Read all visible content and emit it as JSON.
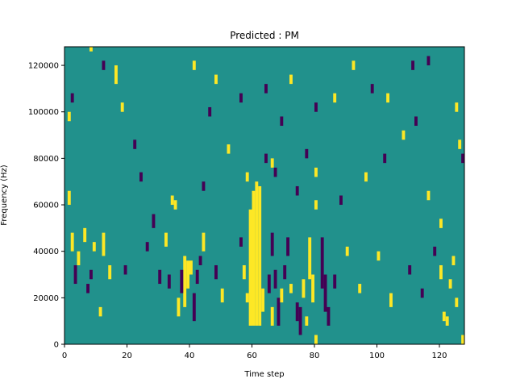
{
  "chart_data": {
    "type": "heatmap",
    "title": "Predicted : PM",
    "xlabel": "Time step",
    "ylabel": "Frequency (Hz)",
    "xlim": [
      0,
      128
    ],
    "ylim": [
      0,
      128000
    ],
    "x_ticks": [
      0,
      20,
      40,
      60,
      80,
      100,
      120
    ],
    "y_ticks": [
      0,
      20000,
      40000,
      60000,
      80000,
      100000,
      120000
    ],
    "x_tick_labels": [
      "0",
      "20",
      "40",
      "60",
      "80",
      "100",
      "120"
    ],
    "y_tick_labels": [
      "0",
      "20000",
      "40000",
      "60000",
      "80000",
      "100000",
      "120000"
    ],
    "grid": false,
    "legend": "none",
    "colors": {
      "background": "#21918c",
      "high": "#fde725",
      "low": "#440154"
    },
    "cell_height": 2000,
    "cells": [
      {
        "x": 59,
        "y0": 8000,
        "y1": 58000,
        "v": "high"
      },
      {
        "x": 60,
        "y0": 8000,
        "y1": 66000,
        "v": "high"
      },
      {
        "x": 61,
        "y0": 8000,
        "y1": 70000,
        "v": "high"
      },
      {
        "x": 62,
        "y0": 8000,
        "y1": 68000,
        "v": "high"
      },
      {
        "x": 63,
        "y0": 14000,
        "y1": 24000,
        "v": "high"
      },
      {
        "x": 65,
        "y0": 22000,
        "y1": 30000,
        "v": "low"
      },
      {
        "x": 66,
        "y0": 38000,
        "y1": 48000,
        "v": "low"
      },
      {
        "x": 66,
        "y0": 8000,
        "y1": 16000,
        "v": "high"
      },
      {
        "x": 67,
        "y0": 24000,
        "y1": 32000,
        "v": "low"
      },
      {
        "x": 68,
        "y0": 8000,
        "y1": 20000,
        "v": "low"
      },
      {
        "x": 69,
        "y0": 18000,
        "y1": 24000,
        "v": "high"
      },
      {
        "x": 70,
        "y0": 28000,
        "y1": 34000,
        "v": "low"
      },
      {
        "x": 71,
        "y0": 38000,
        "y1": 46000,
        "v": "low"
      },
      {
        "x": 72,
        "y0": 22000,
        "y1": 26000,
        "v": "high"
      },
      {
        "x": 74,
        "y0": 10000,
        "y1": 18000,
        "v": "low"
      },
      {
        "x": 75,
        "y0": 4000,
        "y1": 16000,
        "v": "low"
      },
      {
        "x": 76,
        "y0": 20000,
        "y1": 28000,
        "v": "high"
      },
      {
        "x": 77,
        "y0": 8000,
        "y1": 12000,
        "v": "high"
      },
      {
        "x": 78,
        "y0": 28000,
        "y1": 46000,
        "v": "high"
      },
      {
        "x": 79,
        "y0": 18000,
        "y1": 30000,
        "v": "high"
      },
      {
        "x": 80,
        "y0": 0,
        "y1": 4000,
        "v": "high"
      },
      {
        "x": 82,
        "y0": 24000,
        "y1": 46000,
        "v": "low"
      },
      {
        "x": 83,
        "y0": 14000,
        "y1": 30000,
        "v": "low"
      },
      {
        "x": 84,
        "y0": 8000,
        "y1": 16000,
        "v": "low"
      },
      {
        "x": 38,
        "y0": 16000,
        "y1": 38000,
        "v": "high"
      },
      {
        "x": 39,
        "y0": 24000,
        "y1": 36000,
        "v": "high"
      },
      {
        "x": 40,
        "y0": 30000,
        "y1": 36000,
        "v": "high"
      },
      {
        "x": 41,
        "y0": 10000,
        "y1": 22000,
        "v": "low"
      },
      {
        "x": 42,
        "y0": 26000,
        "y1": 32000,
        "v": "low"
      },
      {
        "x": 43,
        "y0": 34000,
        "y1": 38000,
        "v": "low"
      },
      {
        "x": 44,
        "y0": 40000,
        "y1": 48000,
        "v": "high"
      },
      {
        "x": 32,
        "y0": 42000,
        "y1": 48000,
        "v": "high"
      },
      {
        "x": 36,
        "y0": 12000,
        "y1": 20000,
        "v": "high"
      },
      {
        "x": 37,
        "y0": 22000,
        "y1": 32000,
        "v": "low"
      },
      {
        "x": 1,
        "y0": 96000,
        "y1": 100000,
        "v": "high"
      },
      {
        "x": 1,
        "y0": 60000,
        "y1": 66000,
        "v": "high"
      },
      {
        "x": 2,
        "y0": 104000,
        "y1": 108000,
        "v": "low"
      },
      {
        "x": 2,
        "y0": 40000,
        "y1": 48000,
        "v": "high"
      },
      {
        "x": 3,
        "y0": 26000,
        "y1": 34000,
        "v": "low"
      },
      {
        "x": 4,
        "y0": 34000,
        "y1": 40000,
        "v": "high"
      },
      {
        "x": 6,
        "y0": 44000,
        "y1": 50000,
        "v": "high"
      },
      {
        "x": 7,
        "y0": 22000,
        "y1": 26000,
        "v": "low"
      },
      {
        "x": 8,
        "y0": 28000,
        "y1": 32000,
        "v": "low"
      },
      {
        "x": 9,
        "y0": 40000,
        "y1": 44000,
        "v": "high"
      },
      {
        "x": 11,
        "y0": 12000,
        "y1": 16000,
        "v": "high"
      },
      {
        "x": 12,
        "y0": 38000,
        "y1": 48000,
        "v": "high"
      },
      {
        "x": 14,
        "y0": 28000,
        "y1": 34000,
        "v": "high"
      },
      {
        "x": 16,
        "y0": 112000,
        "y1": 120000,
        "v": "high"
      },
      {
        "x": 19,
        "y0": 30000,
        "y1": 34000,
        "v": "low"
      },
      {
        "x": 24,
        "y0": 70000,
        "y1": 74000,
        "v": "low"
      },
      {
        "x": 26,
        "y0": 40000,
        "y1": 44000,
        "v": "low"
      },
      {
        "x": 30,
        "y0": 26000,
        "y1": 32000,
        "v": "low"
      },
      {
        "x": 33,
        "y0": 24000,
        "y1": 30000,
        "v": "low"
      },
      {
        "x": 35,
        "y0": 58000,
        "y1": 62000,
        "v": "high"
      },
      {
        "x": 41,
        "y0": 118000,
        "y1": 122000,
        "v": "high"
      },
      {
        "x": 48,
        "y0": 28000,
        "y1": 34000,
        "v": "low"
      },
      {
        "x": 50,
        "y0": 18000,
        "y1": 24000,
        "v": "high"
      },
      {
        "x": 56,
        "y0": 42000,
        "y1": 46000,
        "v": "low"
      },
      {
        "x": 57,
        "y0": 28000,
        "y1": 34000,
        "v": "high"
      },
      {
        "x": 58,
        "y0": 18000,
        "y1": 22000,
        "v": "high"
      },
      {
        "x": 66,
        "y0": 76000,
        "y1": 80000,
        "v": "high"
      },
      {
        "x": 67,
        "y0": 72000,
        "y1": 76000,
        "v": "low"
      },
      {
        "x": 69,
        "y0": 94000,
        "y1": 98000,
        "v": "low"
      },
      {
        "x": 77,
        "y0": 80000,
        "y1": 84000,
        "v": "low"
      },
      {
        "x": 80,
        "y0": 72000,
        "y1": 76000,
        "v": "high"
      },
      {
        "x": 86,
        "y0": 24000,
        "y1": 30000,
        "v": "low"
      },
      {
        "x": 90,
        "y0": 38000,
        "y1": 42000,
        "v": "high"
      },
      {
        "x": 94,
        "y0": 22000,
        "y1": 26000,
        "v": "high"
      },
      {
        "x": 100,
        "y0": 36000,
        "y1": 40000,
        "v": "high"
      },
      {
        "x": 104,
        "y0": 16000,
        "y1": 22000,
        "v": "high"
      },
      {
        "x": 110,
        "y0": 30000,
        "y1": 34000,
        "v": "low"
      },
      {
        "x": 114,
        "y0": 20000,
        "y1": 24000,
        "v": "low"
      },
      {
        "x": 118,
        "y0": 38000,
        "y1": 42000,
        "v": "low"
      },
      {
        "x": 120,
        "y0": 28000,
        "y1": 34000,
        "v": "high"
      },
      {
        "x": 121,
        "y0": 10000,
        "y1": 14000,
        "v": "high"
      },
      {
        "x": 122,
        "y0": 8000,
        "y1": 12000,
        "v": "high"
      },
      {
        "x": 123,
        "y0": 24000,
        "y1": 28000,
        "v": "high"
      },
      {
        "x": 124,
        "y0": 34000,
        "y1": 38000,
        "v": "high"
      },
      {
        "x": 125,
        "y0": 16000,
        "y1": 20000,
        "v": "high"
      },
      {
        "x": 127,
        "y0": 0,
        "y1": 4000,
        "v": "high"
      },
      {
        "x": 127,
        "y0": 78000,
        "y1": 82000,
        "v": "low"
      },
      {
        "x": 126,
        "y0": 84000,
        "y1": 88000,
        "v": "high"
      },
      {
        "x": 125,
        "y0": 100000,
        "y1": 104000,
        "v": "high"
      },
      {
        "x": 116,
        "y0": 120000,
        "y1": 124000,
        "v": "low"
      },
      {
        "x": 111,
        "y0": 118000,
        "y1": 122000,
        "v": "low"
      },
      {
        "x": 103,
        "y0": 104000,
        "y1": 108000,
        "v": "high"
      },
      {
        "x": 98,
        "y0": 108000,
        "y1": 112000,
        "v": "low"
      },
      {
        "x": 92,
        "y0": 118000,
        "y1": 122000,
        "v": "high"
      },
      {
        "x": 86,
        "y0": 104000,
        "y1": 108000,
        "v": "high"
      },
      {
        "x": 80,
        "y0": 100000,
        "y1": 104000,
        "v": "low"
      },
      {
        "x": 72,
        "y0": 112000,
        "y1": 116000,
        "v": "high"
      },
      {
        "x": 64,
        "y0": 108000,
        "y1": 112000,
        "v": "low"
      },
      {
        "x": 56,
        "y0": 104000,
        "y1": 108000,
        "v": "low"
      },
      {
        "x": 48,
        "y0": 112000,
        "y1": 116000,
        "v": "high"
      },
      {
        "x": 46,
        "y0": 98000,
        "y1": 102000,
        "v": "low"
      },
      {
        "x": 52,
        "y0": 82000,
        "y1": 86000,
        "v": "high"
      },
      {
        "x": 58,
        "y0": 70000,
        "y1": 74000,
        "v": "high"
      },
      {
        "x": 64,
        "y0": 78000,
        "y1": 82000,
        "v": "low"
      },
      {
        "x": 74,
        "y0": 64000,
        "y1": 68000,
        "v": "low"
      },
      {
        "x": 80,
        "y0": 58000,
        "y1": 62000,
        "v": "high"
      },
      {
        "x": 88,
        "y0": 60000,
        "y1": 64000,
        "v": "low"
      },
      {
        "x": 96,
        "y0": 70000,
        "y1": 74000,
        "v": "high"
      },
      {
        "x": 102,
        "y0": 78000,
        "y1": 82000,
        "v": "low"
      },
      {
        "x": 108,
        "y0": 88000,
        "y1": 92000,
        "v": "high"
      },
      {
        "x": 112,
        "y0": 94000,
        "y1": 98000,
        "v": "low"
      },
      {
        "x": 116,
        "y0": 62000,
        "y1": 66000,
        "v": "high"
      },
      {
        "x": 120,
        "y0": 50000,
        "y1": 54000,
        "v": "high"
      },
      {
        "x": 22,
        "y0": 84000,
        "y1": 88000,
        "v": "low"
      },
      {
        "x": 18,
        "y0": 100000,
        "y1": 104000,
        "v": "high"
      },
      {
        "x": 12,
        "y0": 118000,
        "y1": 122000,
        "v": "low"
      },
      {
        "x": 8,
        "y0": 126000,
        "y1": 128000,
        "v": "high"
      },
      {
        "x": 28,
        "y0": 50000,
        "y1": 56000,
        "v": "low"
      },
      {
        "x": 34,
        "y0": 60000,
        "y1": 64000,
        "v": "high"
      },
      {
        "x": 44,
        "y0": 66000,
        "y1": 70000,
        "v": "low"
      }
    ]
  }
}
